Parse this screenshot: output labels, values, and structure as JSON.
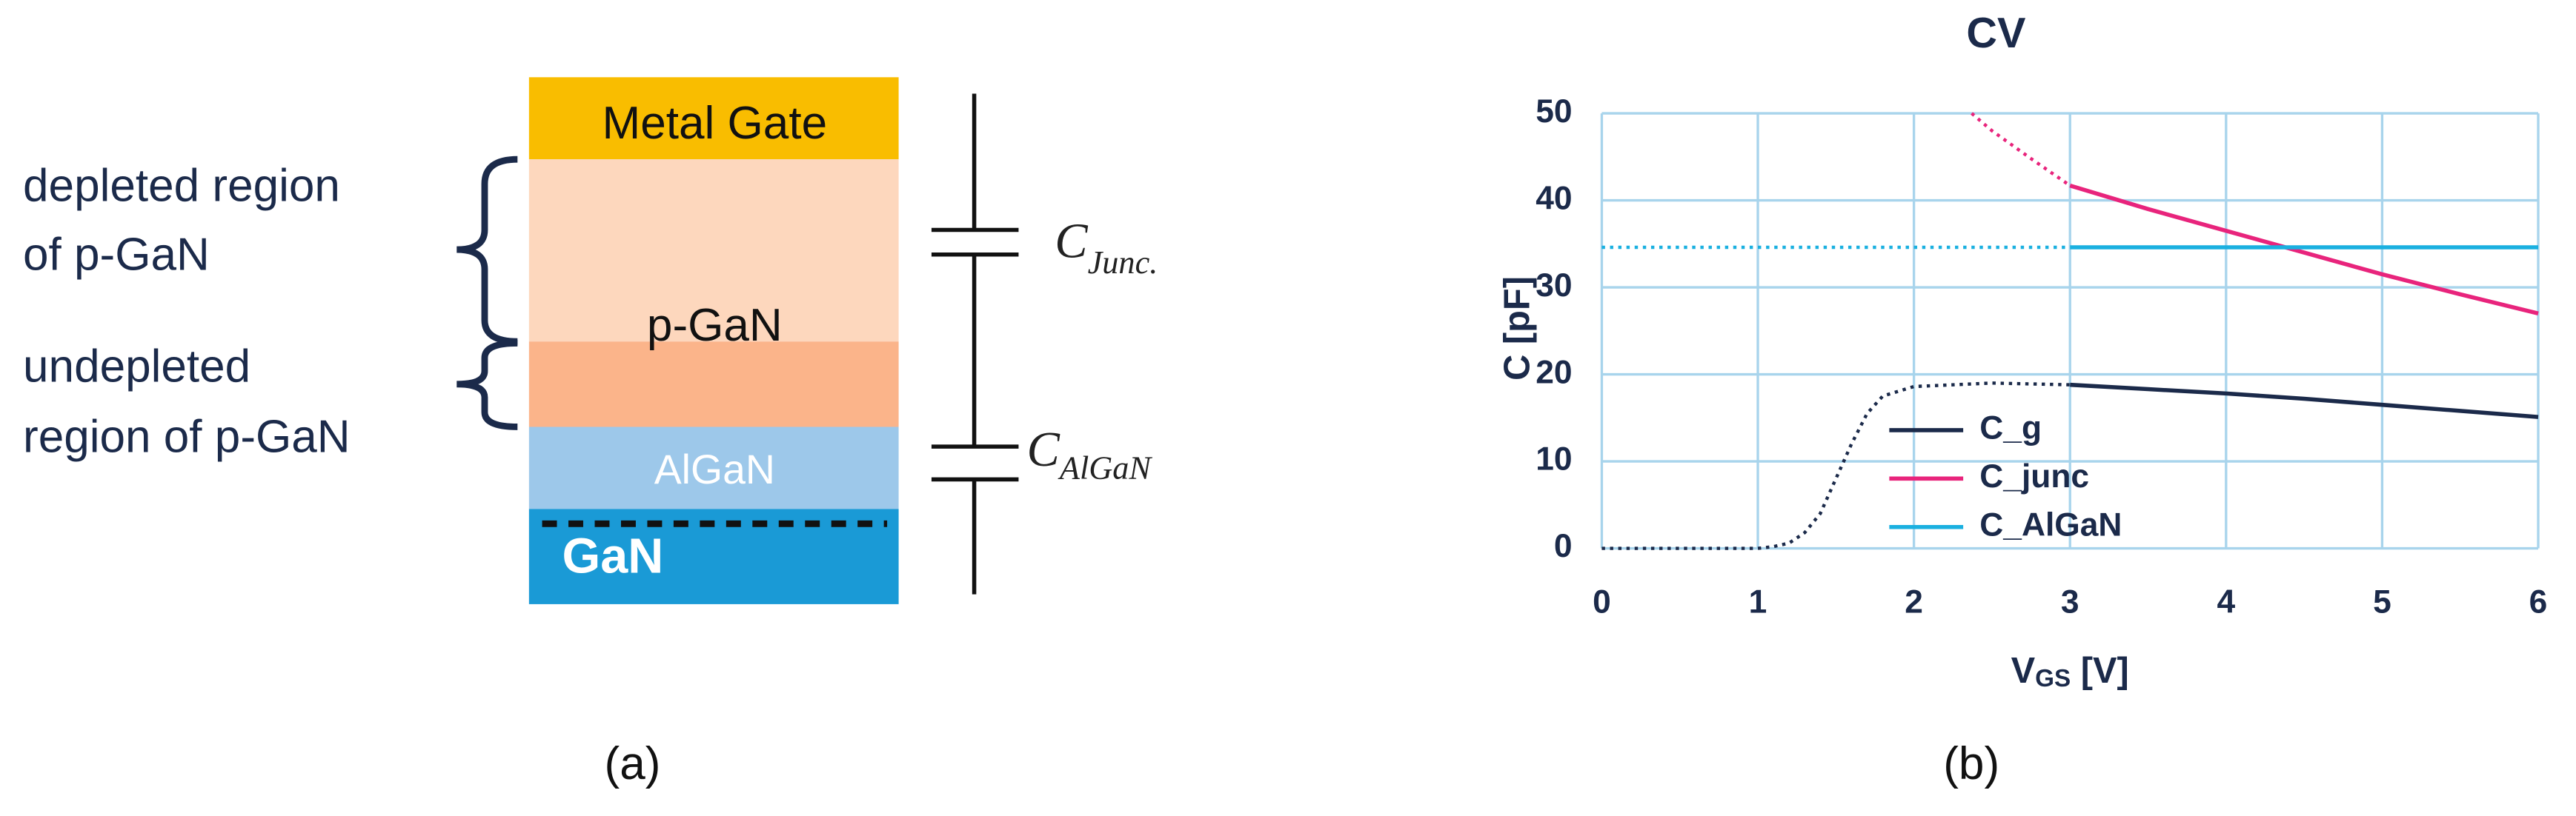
{
  "diagram": {
    "layers": [
      "Metal Gate",
      "p-GaN",
      "AlGaN",
      "GaN"
    ],
    "left_labels": [
      "depleted region",
      "of p-GaN",
      "undepleted",
      "region of p-GaN"
    ],
    "cap_junc": {
      "main": "C",
      "sub": "Junc."
    },
    "cap_algan": {
      "main": "C",
      "sub": "AlGaN"
    },
    "caption": "(a)"
  },
  "chart_data": {
    "type": "line",
    "title": "CV",
    "caption": "(b)",
    "ylabel": "C [pF]",
    "xlabel": {
      "main": "V",
      "sub": "GS",
      "unit": " [V]"
    },
    "xlim": [
      0,
      6
    ],
    "xticks": [
      0,
      1,
      2,
      3,
      4,
      5,
      6
    ],
    "ylim": [
      0,
      50
    ],
    "yticks": [
      0,
      10,
      20,
      30,
      40,
      50
    ],
    "grid": true,
    "legend": "middle-left",
    "solid_from": 3,
    "series": [
      {
        "name": "C_g",
        "color": "#1b2a4a",
        "x": [
          0,
          0.5,
          1,
          1.1,
          1.2,
          1.3,
          1.4,
          1.5,
          1.6,
          1.7,
          1.8,
          2,
          2.5,
          3,
          3.5,
          4,
          4.5,
          5,
          5.5,
          6
        ],
        "values": [
          0,
          0,
          0,
          0.2,
          0.6,
          1.8,
          4,
          8,
          12,
          15.5,
          17.5,
          18.6,
          19,
          18.8,
          18.3,
          17.8,
          17.2,
          16.5,
          15.8,
          15.1
        ]
      },
      {
        "name": "C_junc",
        "color": "#e8247c",
        "x": [
          2.37,
          2.5,
          2.75,
          3,
          3.5,
          4,
          4.5,
          5,
          5.5,
          6
        ],
        "values": [
          50,
          48,
          44.8,
          41.7,
          39,
          36.5,
          34,
          31.5,
          29.2,
          27
        ]
      },
      {
        "name": "C_AlGaN",
        "color": "#1ab0e0",
        "x": [
          0,
          3,
          6
        ],
        "values": [
          34.6,
          34.6,
          34.6
        ]
      }
    ]
  }
}
